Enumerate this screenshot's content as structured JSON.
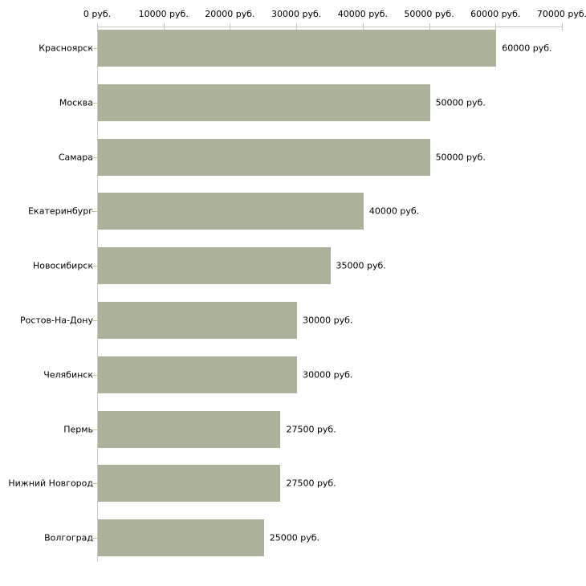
{
  "chart_data": {
    "type": "bar",
    "orientation": "horizontal",
    "title": "",
    "xlabel": "",
    "ylabel": "",
    "unit": "руб.",
    "categories": [
      "Красноярск",
      "Москва",
      "Самара",
      "Екатеринбург",
      "Новосибирск",
      "Ростов-На-Дону",
      "Челябинск",
      "Пермь",
      "Нижний Новгород",
      "Волгоград"
    ],
    "values": [
      60000,
      50000,
      50000,
      40000,
      35000,
      30000,
      30000,
      27500,
      27500,
      25000
    ],
    "value_labels": [
      "60000 руб.",
      "50000 руб.",
      "50000 руб.",
      "40000 руб.",
      "35000 руб.",
      "30000 руб.",
      "30000 руб.",
      "27500 руб.",
      "27500 руб.",
      "25000 руб."
    ],
    "x_ticks": [
      0,
      10000,
      20000,
      30000,
      40000,
      50000,
      60000,
      70000
    ],
    "x_tick_labels": [
      "0 руб.",
      "10000 руб.",
      "20000 руб.",
      "30000 руб.",
      "40000 руб.",
      "50000 руб.",
      "60000 руб.",
      "70000 руб."
    ],
    "xlim": [
      0,
      70000
    ],
    "grid": false,
    "legend": false,
    "axis_position": "top-left",
    "colors": {
      "bar_fill": "#abb29a",
      "axis_line": "#c9c9c9",
      "tick_mark": "#c2c2a4",
      "text": "#000000",
      "background": "#ffffff"
    }
  }
}
